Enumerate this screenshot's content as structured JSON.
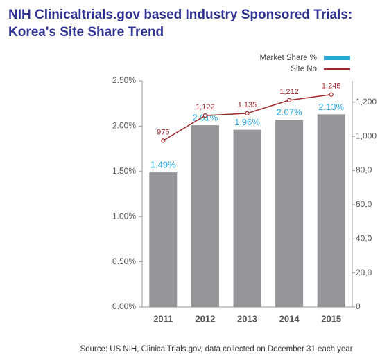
{
  "chart_data": {
    "type": "bar",
    "title": "NIH Clinicaltrials.gov based Industry Sponsored Trials:",
    "subtitle": "Korea's Site Share Trend",
    "source": "Source: US NIH, ClinicalTrials.gov, data collected on December 31 each year",
    "categories": [
      "2011",
      "2012",
      "2013",
      "2014",
      "2015"
    ],
    "series": [
      {
        "name": "Market Share %",
        "type": "bar",
        "color": "#939598",
        "legend_color": "#29a8e0",
        "label_color": "#29a8e0",
        "values": [
          1.49,
          2.01,
          1.96,
          2.07,
          2.13
        ],
        "value_labels": [
          "1.49%",
          "2.01%",
          "1.96%",
          "2.07%",
          "2.13%"
        ]
      },
      {
        "name": "Site No",
        "type": "line",
        "axis": "y2",
        "color": "#a0282d",
        "values": [
          975,
          1122,
          1135,
          1212,
          1245
        ],
        "value_labels": [
          "975",
          "1,122",
          "1,135",
          "1,212",
          "1,245"
        ]
      }
    ],
    "ylim": [
      0,
      2.5
    ],
    "yticks": [
      {
        "value": 0,
        "label": "0.00%"
      },
      {
        "value": 0.5,
        "label": "0.50%"
      },
      {
        "value": 1,
        "label": "1.00%"
      },
      {
        "value": 1.5,
        "label": "1.50%"
      },
      {
        "value": 2,
        "label": "2.00%"
      },
      {
        "value": 2.5,
        "label": "2.50%"
      }
    ],
    "y2lim": [
      0,
      1325
    ],
    "y2ticks": [
      0,
      {
        "value": 200,
        "label": "20,0"
      },
      {
        "value": 400,
        "label": "40,0"
      },
      {
        "value": 600,
        "label": "60,0"
      },
      {
        "value": 800,
        "label": "80,0"
      },
      {
        "value": 1000,
        "label": "1,000"
      },
      {
        "value": 1200,
        "label": "1,200"
      }
    ],
    "legend_position": "top-right"
  }
}
